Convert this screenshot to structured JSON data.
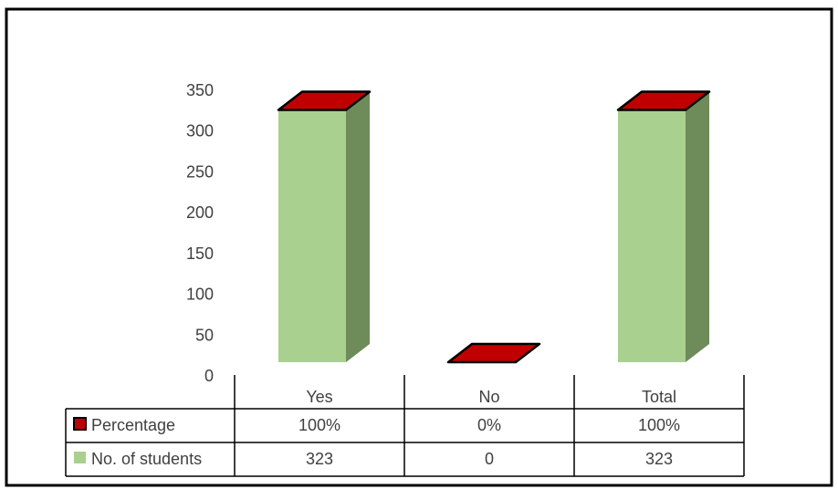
{
  "chart_data": {
    "type": "bar",
    "style": "3d-column-with-data-table",
    "categories": [
      "Yes",
      "No",
      "Total"
    ],
    "series": [
      {
        "name": "Percentage",
        "values": [
          "100%",
          "0%",
          "100%"
        ],
        "numeric_values": [
          1.0,
          0.0,
          1.0
        ],
        "color": "#c00000"
      },
      {
        "name": "No. of students",
        "values": [
          "323",
          "0",
          "323"
        ],
        "numeric_values": [
          323,
          0,
          323
        ],
        "color": "#a9d08e"
      }
    ],
    "yticks": [
      "0",
      "50",
      "100",
      "150",
      "200",
      "250",
      "300",
      "350"
    ],
    "ylim": [
      0,
      350
    ],
    "grid": false,
    "legend": "data-table"
  },
  "colors": {
    "bar_front": "#a9d08e",
    "bar_side": "#6e8b5a",
    "cap": "#c00000",
    "frame": "#000000",
    "table_line": "#000000",
    "text": "#404040"
  }
}
